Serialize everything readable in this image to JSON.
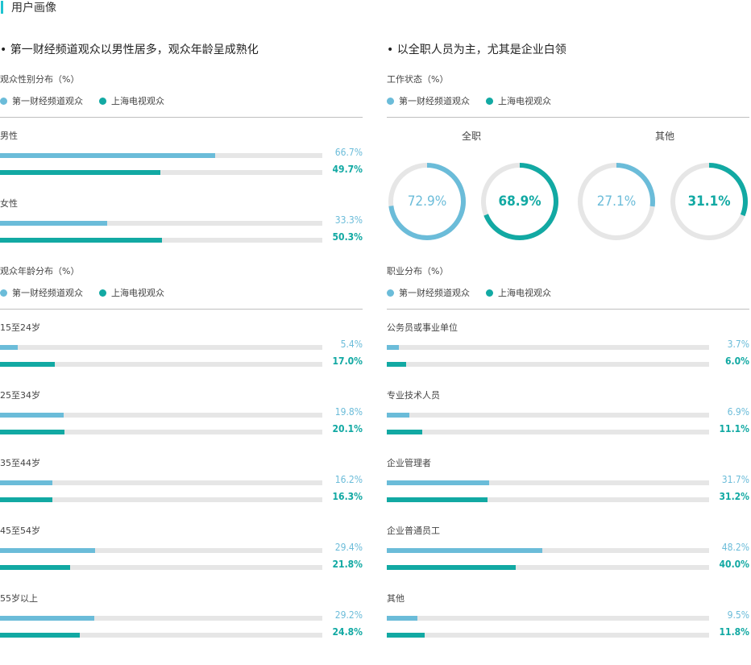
{
  "header": {
    "title": "用户画像"
  },
  "colors": {
    "accent": "#1fc3d0",
    "series1": "#6bbcd9",
    "series2": "#12a9a3",
    "track": "#e6e6e6"
  },
  "left": {
    "section_title": "• 第一财经频道观众以男性居多，观众年龄呈成熟化",
    "gender": {
      "subtitle": "观众性别分布（%）",
      "legend": [
        "第一财经频道观众",
        "上海电视观众"
      ]
    },
    "age": {
      "subtitle": "观众年龄分布（%）",
      "legend": [
        "第一财经频道观众",
        "上海电视观众"
      ]
    }
  },
  "right": {
    "section_title": "• 以全职人员为主，尤其是企业白领",
    "work": {
      "subtitle": "工作状态（%）",
      "legend": [
        "第一财经频道观众",
        "上海电视观众"
      ]
    },
    "occupation": {
      "subtitle": "职业分布（%）",
      "legend": [
        "第一财经频道观众",
        "上海电视观众"
      ]
    }
  },
  "chart_data": [
    {
      "type": "bar",
      "title": "观众性别分布（%）",
      "categories": [
        "男性",
        "女性"
      ],
      "series": [
        {
          "name": "第一财经频道观众",
          "values": [
            66.7,
            33.3
          ]
        },
        {
          "name": "上海电视观众",
          "values": [
            49.7,
            50.3
          ]
        }
      ],
      "labels": [
        [
          "66.7%",
          "33.3%"
        ],
        [
          "49.7%",
          "50.3%"
        ]
      ],
      "xlim": [
        0,
        100
      ]
    },
    {
      "type": "bar",
      "title": "观众年龄分布（%）",
      "categories": [
        "15至24岁",
        "25至34岁",
        "35至44岁",
        "45至54岁",
        "55岁以上"
      ],
      "series": [
        {
          "name": "第一财经频道观众",
          "values": [
            5.4,
            19.8,
            16.2,
            29.4,
            29.2
          ]
        },
        {
          "name": "上海电视观众",
          "values": [
            17.0,
            20.1,
            16.3,
            21.8,
            24.8
          ]
        }
      ],
      "labels": [
        [
          "5.4%",
          "19.8%",
          "16.2%",
          "29.4%",
          "29.2%"
        ],
        [
          "17.0%",
          "20.1%",
          "16.3%",
          "21.8%",
          "24.8%"
        ]
      ],
      "xlim": [
        0,
        100
      ]
    },
    {
      "type": "pie",
      "title": "工作状态（%）",
      "groups": [
        "全职",
        "其他"
      ],
      "series": [
        {
          "name": "第一财经频道观众",
          "values": [
            72.9,
            27.1
          ]
        },
        {
          "name": "上海电视观众",
          "values": [
            68.9,
            31.1
          ]
        }
      ],
      "labels": [
        [
          "72.9%",
          "27.1%"
        ],
        [
          "68.9%",
          "31.1%"
        ]
      ]
    },
    {
      "type": "bar",
      "title": "职业分布（%）",
      "categories": [
        "公务员或事业单位",
        "专业技术人员",
        "企业管理者",
        "企业普通员工",
        "其他"
      ],
      "series": [
        {
          "name": "第一财经频道观众",
          "values": [
            3.7,
            6.9,
            31.7,
            48.2,
            9.5
          ]
        },
        {
          "name": "上海电视观众",
          "values": [
            6.0,
            11.1,
            31.2,
            40.0,
            11.8
          ]
        }
      ],
      "labels": [
        [
          "3.7%",
          "6.9%",
          "31.7%",
          "48.2%",
          "9.5%"
        ],
        [
          "6.0%",
          "11.1%",
          "31.2%",
          "40.0%",
          "11.8%"
        ]
      ],
      "xlim": [
        0,
        100
      ]
    }
  ]
}
